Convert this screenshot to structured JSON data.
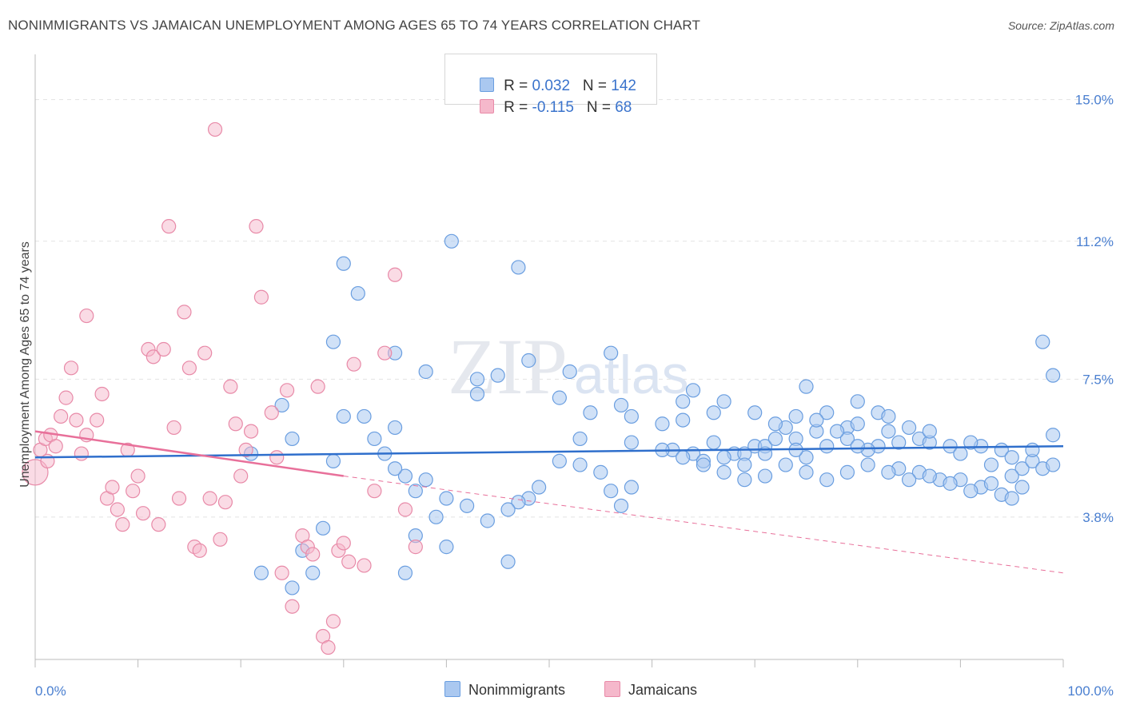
{
  "header": {
    "title": "NONIMMIGRANTS VS JAMAICAN UNEMPLOYMENT AMONG AGES 65 TO 74 YEARS CORRELATION CHART",
    "source": "Source: ZipAtlas.com"
  },
  "watermark": {
    "zip": "ZIP",
    "atlas": "atlas"
  },
  "legend": {
    "rows": [
      {
        "r_label": "R = ",
        "r_value": "0.032",
        "n_label": "N = ",
        "n_value": "142"
      },
      {
        "r_label": "R = ",
        "r_value": "-0.115",
        "n_label": "N = ",
        "n_value": "68"
      }
    ]
  },
  "bottom_legend": {
    "series1": "Nonimmigrants",
    "series2": "Jamaicans"
  },
  "colors": {
    "blue_fill": "#aac8f0",
    "blue_stroke": "#6a9ee0",
    "blue_line": "#2f6fcc",
    "pink_fill": "#f5b8cb",
    "pink_stroke": "#e88aa8",
    "pink_line": "#e8709a",
    "tick_text": "#4a7fd0",
    "grid": "#e2e2e2"
  },
  "chart_data": {
    "type": "scatter",
    "title": "NONIMMIGRANTS VS JAMAICAN UNEMPLOYMENT AMONG AGES 65 TO 74 YEARS CORRELATION CHART",
    "xlabel": "",
    "ylabel": "Unemployment Among Ages 65 to 74 years",
    "xlim": [
      0,
      100
    ],
    "ylim": [
      0,
      16
    ],
    "x_tick_labels": [
      "0.0%",
      "100.0%"
    ],
    "y_ticks": [
      3.8,
      7.5,
      11.2,
      15.0
    ],
    "y_tick_labels": [
      "3.8%",
      "7.5%",
      "11.2%",
      "15.0%"
    ],
    "grid": true,
    "legend_position": "top-center",
    "series": [
      {
        "name": "Nonimmigrants",
        "R": 0.032,
        "N": 142,
        "trend": {
          "x": [
            0,
            100
          ],
          "y": [
            5.4,
            5.7
          ]
        },
        "points": [
          [
            30,
            10.6
          ],
          [
            31.4,
            9.8
          ],
          [
            40.5,
            11.2
          ],
          [
            47,
            10.5
          ],
          [
            29,
            8.5
          ],
          [
            35,
            8.2
          ],
          [
            43,
            7.5
          ],
          [
            38,
            7.7
          ],
          [
            45,
            7.6
          ],
          [
            48,
            8.0
          ],
          [
            52,
            7.7
          ],
          [
            56,
            8.2
          ],
          [
            32,
            6.5
          ],
          [
            24,
            6.8
          ],
          [
            25,
            5.9
          ],
          [
            35,
            6.2
          ],
          [
            43,
            7.1
          ],
          [
            51,
            7.0
          ],
          [
            54,
            6.6
          ],
          [
            57,
            6.8
          ],
          [
            58,
            6.5
          ],
          [
            63,
            6.9
          ],
          [
            66,
            6.6
          ],
          [
            61,
            6.3
          ],
          [
            63,
            6.4
          ],
          [
            53,
            5.9
          ],
          [
            58,
            5.8
          ],
          [
            62,
            5.6
          ],
          [
            64,
            5.5
          ],
          [
            68,
            5.5
          ],
          [
            70,
            5.7
          ],
          [
            71,
            5.7
          ],
          [
            72,
            5.9
          ],
          [
            75,
            5.4
          ],
          [
            75,
            7.3
          ],
          [
            77,
            6.6
          ],
          [
            80,
            6.9
          ],
          [
            79,
            6.2
          ],
          [
            80,
            6.3
          ],
          [
            82,
            6.6
          ],
          [
            83,
            6.5
          ],
          [
            73,
            6.2
          ],
          [
            76,
            6.1
          ],
          [
            77,
            5.7
          ],
          [
            74,
            5.9
          ],
          [
            71,
            5.5
          ],
          [
            66,
            5.8
          ],
          [
            67,
            5.4
          ],
          [
            69,
            5.5
          ],
          [
            65,
            5.3
          ],
          [
            69,
            5.2
          ],
          [
            74,
            5.6
          ],
          [
            79,
            5.9
          ],
          [
            82,
            5.7
          ],
          [
            84,
            5.8
          ],
          [
            86,
            5.9
          ],
          [
            87,
            5.8
          ],
          [
            89,
            5.7
          ],
          [
            90,
            5.5
          ],
          [
            92,
            5.7
          ],
          [
            94,
            5.6
          ],
          [
            95,
            5.4
          ],
          [
            93,
            5.2
          ],
          [
            96,
            5.1
          ],
          [
            97,
            5.3
          ],
          [
            98,
            5.1
          ],
          [
            99,
            5.2
          ],
          [
            90,
            4.8
          ],
          [
            92,
            4.6
          ],
          [
            94,
            4.4
          ],
          [
            95,
            4.3
          ],
          [
            96,
            4.6
          ],
          [
            88,
            4.8
          ],
          [
            86,
            5.0
          ],
          [
            84,
            5.1
          ],
          [
            81,
            5.6
          ],
          [
            80,
            5.7
          ],
          [
            78,
            6.1
          ],
          [
            76,
            6.4
          ],
          [
            74,
            6.5
          ],
          [
            72,
            6.3
          ],
          [
            70,
            6.6
          ],
          [
            67,
            6.9
          ],
          [
            64,
            7.2
          ],
          [
            91,
            5.8
          ],
          [
            87,
            6.1
          ],
          [
            85,
            6.2
          ],
          [
            83,
            6.1
          ],
          [
            99,
            6.0
          ],
          [
            98,
            8.5
          ],
          [
            99,
            7.6
          ],
          [
            97,
            5.6
          ],
          [
            95,
            4.9
          ],
          [
            93,
            4.7
          ],
          [
            91,
            4.5
          ],
          [
            89,
            4.7
          ],
          [
            87,
            4.9
          ],
          [
            85,
            4.8
          ],
          [
            83,
            5.0
          ],
          [
            81,
            5.2
          ],
          [
            79,
            5.0
          ],
          [
            77,
            4.8
          ],
          [
            75,
            5.0
          ],
          [
            73,
            5.2
          ],
          [
            71,
            4.9
          ],
          [
            69,
            4.8
          ],
          [
            67,
            5.0
          ],
          [
            65,
            5.2
          ],
          [
            63,
            5.4
          ],
          [
            61,
            5.6
          ],
          [
            58,
            4.6
          ],
          [
            57,
            4.1
          ],
          [
            56,
            4.5
          ],
          [
            55,
            5.0
          ],
          [
            53,
            5.2
          ],
          [
            51,
            5.3
          ],
          [
            49,
            4.6
          ],
          [
            48,
            4.3
          ],
          [
            47,
            4.2
          ],
          [
            46,
            4.0
          ],
          [
            44,
            3.7
          ],
          [
            42,
            4.1
          ],
          [
            40,
            4.3
          ],
          [
            38,
            4.8
          ],
          [
            37,
            4.5
          ],
          [
            36,
            4.9
          ],
          [
            35,
            5.1
          ],
          [
            34,
            5.5
          ],
          [
            33,
            5.9
          ],
          [
            29,
            5.3
          ],
          [
            28,
            3.5
          ],
          [
            26,
            2.9
          ],
          [
            27,
            2.3
          ],
          [
            25,
            1.9
          ],
          [
            22,
            2.3
          ],
          [
            36,
            2.3
          ],
          [
            37,
            3.3
          ],
          [
            39,
            3.8
          ],
          [
            40,
            3.0
          ],
          [
            30,
            6.5
          ],
          [
            21,
            5.5
          ],
          [
            46,
            2.6
          ]
        ]
      },
      {
        "name": "Jamaicans",
        "R": -0.115,
        "N": 68,
        "trend": {
          "x": [
            0,
            30
          ],
          "y": [
            6.1,
            4.9
          ],
          "extended": {
            "x": [
              30,
              100
            ],
            "y": [
              4.9,
              2.3
            ]
          }
        },
        "points": [
          [
            0,
            5.0
          ],
          [
            0.5,
            5.6
          ],
          [
            1,
            5.9
          ],
          [
            1.2,
            5.3
          ],
          [
            1.5,
            6.0
          ],
          [
            2,
            5.7
          ],
          [
            2.5,
            6.5
          ],
          [
            3,
            7.0
          ],
          [
            3.5,
            7.8
          ],
          [
            4,
            6.4
          ],
          [
            4.5,
            5.5
          ],
          [
            5,
            6.0
          ],
          [
            5,
            9.2
          ],
          [
            6,
            6.4
          ],
          [
            6.5,
            7.1
          ],
          [
            7,
            4.3
          ],
          [
            7.5,
            4.6
          ],
          [
            8,
            4.0
          ],
          [
            8.5,
            3.6
          ],
          [
            9,
            5.6
          ],
          [
            9.5,
            4.5
          ],
          [
            10,
            4.9
          ],
          [
            10.5,
            3.9
          ],
          [
            11,
            8.3
          ],
          [
            11.5,
            8.1
          ],
          [
            12,
            3.6
          ],
          [
            12.5,
            8.3
          ],
          [
            13,
            11.6
          ],
          [
            13.5,
            6.2
          ],
          [
            14,
            4.3
          ],
          [
            14.5,
            9.3
          ],
          [
            15,
            7.8
          ],
          [
            15.5,
            3.0
          ],
          [
            16,
            2.9
          ],
          [
            16.5,
            8.2
          ],
          [
            17,
            4.3
          ],
          [
            17.5,
            14.2
          ],
          [
            18,
            3.2
          ],
          [
            18.5,
            4.2
          ],
          [
            19,
            7.3
          ],
          [
            19.5,
            6.3
          ],
          [
            20,
            4.9
          ],
          [
            20.5,
            5.6
          ],
          [
            21,
            6.1
          ],
          [
            21.5,
            11.6
          ],
          [
            22,
            9.7
          ],
          [
            23,
            6.6
          ],
          [
            23.5,
            5.4
          ],
          [
            24,
            2.3
          ],
          [
            24.5,
            7.2
          ],
          [
            25,
            1.4
          ],
          [
            26,
            3.3
          ],
          [
            26.5,
            3.0
          ],
          [
            27,
            2.8
          ],
          [
            27.5,
            7.3
          ],
          [
            28,
            0.6
          ],
          [
            28.5,
            0.3
          ],
          [
            29,
            1.0
          ],
          [
            29.5,
            2.9
          ],
          [
            30,
            3.1
          ],
          [
            30.5,
            2.6
          ],
          [
            31,
            7.9
          ],
          [
            32,
            2.5
          ],
          [
            33,
            4.5
          ],
          [
            34,
            8.2
          ],
          [
            35,
            10.3
          ],
          [
            36,
            4.0
          ],
          [
            37,
            3.0
          ]
        ]
      }
    ]
  }
}
